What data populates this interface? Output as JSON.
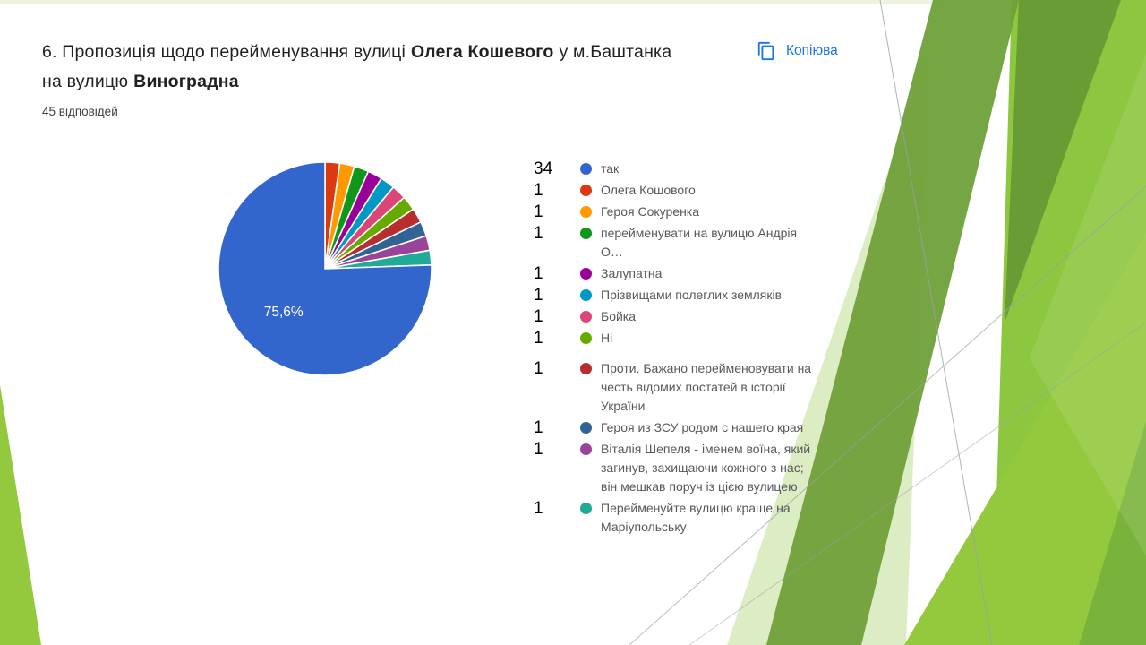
{
  "question": {
    "line1_pre": "6. Пропозиція щодо перейменування вулиці",
    "line1_bold": "Олега Кошевого",
    "line1_post": "у м.Баштанка",
    "line2_pre": "на вулицю",
    "line2_bold": "Виноградна",
    "responses_label": "45 відповідей"
  },
  "copy_button": {
    "label": "Копіюва"
  },
  "chart_data": {
    "type": "pie",
    "categories": [
      "так",
      "Олега Кошового",
      "Героя Сокуренка",
      "перейменувати на вулицю Андрія О…",
      "Залупатна",
      "Прізвищами полеглих земляків",
      "Бойка",
      "Ні",
      "Проти. Бажано перейменовувати на честь відомих постатей в історії України",
      "Героя из ЗСУ родом с нашего края",
      "Віталія Шепеля - іменем воїна, який загинув, захищаючи кожного з нас; він мешкав поруч із цією вулицею",
      "Перейменуйте вулицю краще на Маріупольську"
    ],
    "values": [
      34,
      1,
      1,
      1,
      1,
      1,
      1,
      1,
      1,
      1,
      1,
      1
    ],
    "total": 45,
    "colors": [
      "#3366CC",
      "#DC3912",
      "#FF9900",
      "#109618",
      "#990099",
      "#0099C6",
      "#DD4477",
      "#66AA00",
      "#B82E2E",
      "#316395",
      "#994499",
      "#22AA99"
    ],
    "slice_label": {
      "index": 0,
      "text": "75,6%"
    },
    "draw_order": [
      1,
      2,
      3,
      4,
      5,
      6,
      7,
      8,
      9,
      10,
      11,
      0
    ],
    "legend_position": "right"
  },
  "legend": {
    "items": [
      {
        "count": "34",
        "label": "так"
      },
      {
        "count": "1",
        "label": "Олега Кошового"
      },
      {
        "count": "1",
        "label": "Героя Сокуренка"
      },
      {
        "count": "1",
        "label": "перейменувати на вулицю Андрія О…"
      },
      {
        "count": "1",
        "label": "Залупатна"
      },
      {
        "count": "1",
        "label": "Прізвищами полеглих земляків"
      },
      {
        "count": "1",
        "label": "Бойка"
      },
      {
        "count": "1",
        "label": "Ні"
      },
      {
        "count": "1",
        "label": "Проти. Бажано перейменовувати на честь відомих постатей в історії України"
      },
      {
        "count": "1",
        "label": "Героя из ЗСУ родом с нашего края"
      },
      {
        "count": "1",
        "label": "Віталія Шепеля - іменем воїна, який загинув, захищаючи кожного з нас; він мешкав поруч із цією вулицею"
      },
      {
        "count": "1",
        "label": "Перейменуйте вулицю краще на Маріупольську"
      }
    ]
  },
  "theme": {
    "accent_link_blue": "#1a73e8",
    "title_text": "#212121",
    "legend_text": "#56595d",
    "facet_bright_green": "#8dc63f",
    "facet_olive_green": "#6fa03a",
    "facet_pale_green": "#dcecc3",
    "top_strip_green": "#ecf3e0",
    "bottom_left_green": "#94c83d",
    "hairline_gray": "#9aa0a6"
  }
}
